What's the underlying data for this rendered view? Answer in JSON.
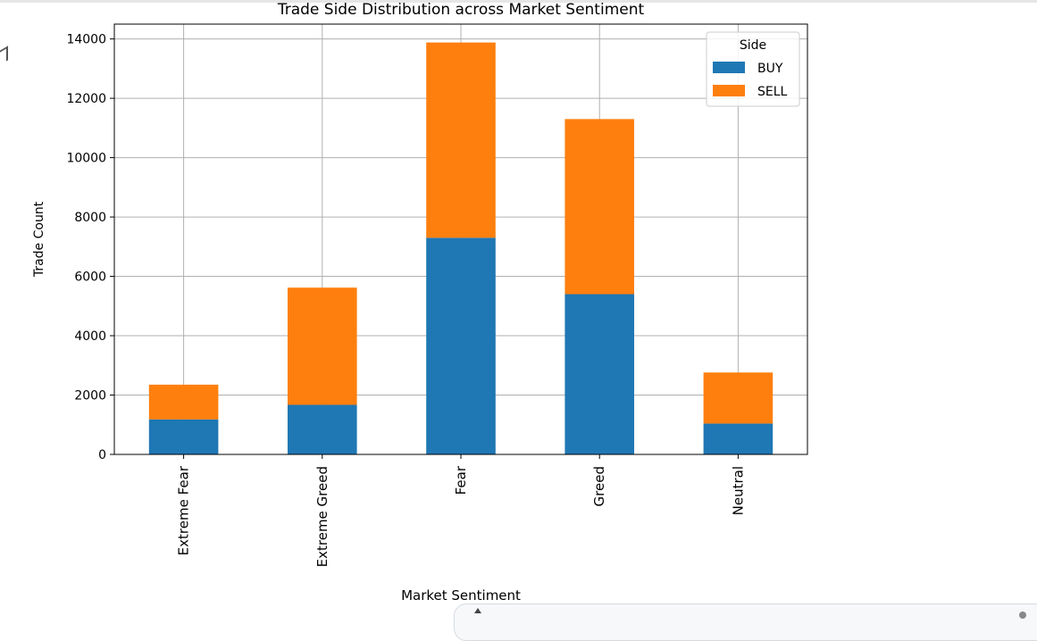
{
  "chart_data": {
    "type": "bar",
    "stacked": true,
    "title": "Trade Side Distribution across Market Sentiment",
    "xlabel": "Market Sentiment",
    "ylabel": "Trade Count",
    "categories": [
      "Extreme Fear",
      "Extreme Greed",
      "Fear",
      "Greed",
      "Neutral"
    ],
    "series": [
      {
        "name": "BUY",
        "color": "#1f77b4",
        "values": [
          1180,
          1670,
          7300,
          5400,
          1040
        ]
      },
      {
        "name": "SELL",
        "color": "#ff7f0e",
        "values": [
          1170,
          3950,
          6580,
          5900,
          1720
        ]
      }
    ],
    "ylim": [
      0,
      14500
    ],
    "yticks": [
      0,
      2000,
      4000,
      6000,
      8000,
      10000,
      12000,
      14000
    ],
    "grid": true,
    "legend": {
      "title": "Side",
      "position": "top-right"
    }
  }
}
